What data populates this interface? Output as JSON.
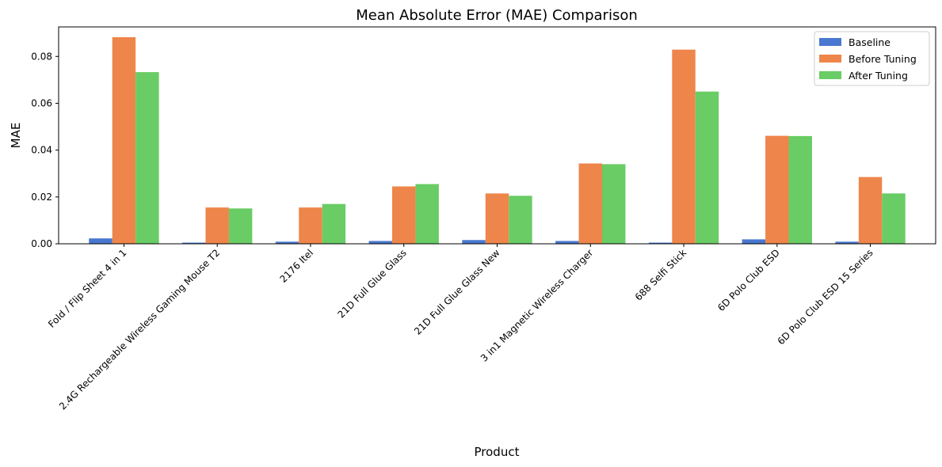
{
  "chart_data": {
    "type": "bar",
    "title": "Mean Absolute Error (MAE) Comparison",
    "xlabel": "Product",
    "ylabel": "MAE",
    "ylim": [
      0,
      0.0926
    ],
    "yticks": [
      0.0,
      0.02,
      0.04,
      0.06,
      0.08
    ],
    "ytick_labels": [
      "0.00",
      "0.02",
      "0.04",
      "0.06",
      "0.08"
    ],
    "grid": false,
    "legend_position": "top-right",
    "categories": [
      "Fold / Flip Sheet 4 in 1",
      "2.4G Rechargeable Wireless Gaming Mouse T2",
      "2176 Itel",
      "21D Full Glue Glass",
      "21D Full Glue Glass New",
      "3 in1 Magnetic Wireless Charger",
      "688 Selfi Stick",
      "6D Polo Club ESD",
      "6D Polo Club ESD 15 Series"
    ],
    "series": [
      {
        "name": "Baseline",
        "color": "#4878d0",
        "values": [
          0.0023,
          0.0005,
          0.0009,
          0.0012,
          0.0016,
          0.0012,
          0.0005,
          0.0019,
          0.0009
        ]
      },
      {
        "name": "Before Tuning",
        "color": "#ee854a",
        "values": [
          0.0882,
          0.0155,
          0.0155,
          0.0245,
          0.0215,
          0.0343,
          0.0829,
          0.0461,
          0.0285
        ]
      },
      {
        "name": "After Tuning",
        "color": "#6acc64",
        "values": [
          0.0733,
          0.0151,
          0.017,
          0.0255,
          0.0205,
          0.034,
          0.065,
          0.046,
          0.0215
        ]
      }
    ]
  }
}
